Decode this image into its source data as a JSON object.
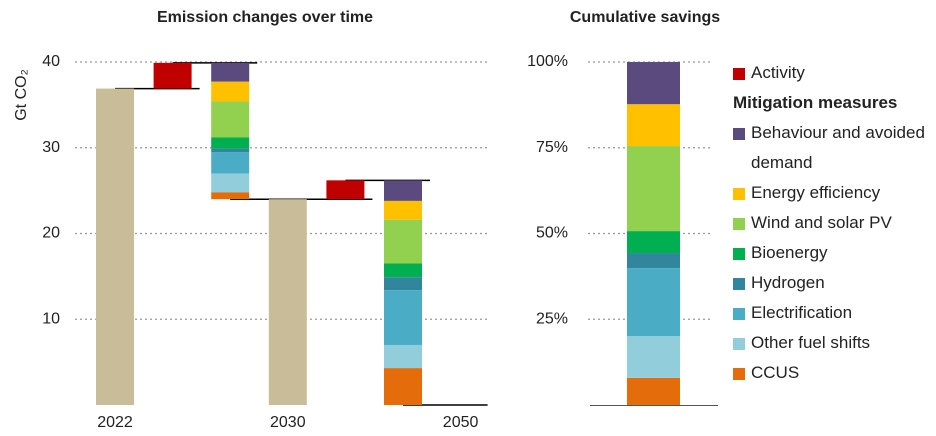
{
  "chart_data": [
    {
      "type": "waterfall",
      "title": "Emission changes over time",
      "y_label": "Gt CO₂",
      "categories": [
        "2022",
        null,
        null,
        "2030",
        null,
        null,
        "2050"
      ],
      "totals": {
        "color": "#c8bd98",
        "values": [
          36.9,
          null,
          null,
          24.0,
          null,
          null,
          0
        ]
      },
      "legend_group_title": "Mitigation measures",
      "series": [
        {
          "name": "Activity",
          "color": "#c00000",
          "values": [
            null,
            3.0,
            null,
            null,
            2.2,
            null,
            null
          ]
        },
        {
          "name": "Behaviour and avoided demand",
          "color": "#5b4a7e",
          "values": [
            null,
            null,
            -2.2,
            null,
            null,
            -2.4,
            null
          ]
        },
        {
          "name": "Energy efficiency",
          "color": "#ffc000",
          "values": [
            null,
            null,
            -2.3,
            null,
            null,
            -2.2,
            null
          ]
        },
        {
          "name": "Wind and solar PV",
          "color": "#92d050",
          "values": [
            null,
            null,
            -4.2,
            null,
            null,
            -5.1,
            null
          ]
        },
        {
          "name": "Bioenergy",
          "color": "#00b050",
          "values": [
            null,
            null,
            -1.3,
            null,
            null,
            -1.6,
            null
          ]
        },
        {
          "name": "Hydrogen",
          "color": "#31859c",
          "values": [
            null,
            null,
            -0.4,
            null,
            null,
            -1.5,
            null
          ]
        },
        {
          "name": "Electrification",
          "color": "#4bacc6",
          "values": [
            null,
            null,
            -2.5,
            null,
            null,
            -6.4,
            null
          ]
        },
        {
          "name": "Other fuel shifts",
          "color": "#92cddc",
          "values": [
            null,
            null,
            -2.2,
            null,
            null,
            -2.7,
            null
          ]
        },
        {
          "name": "CCUS",
          "color": "#e46c0a",
          "values": [
            null,
            null,
            -0.8,
            null,
            null,
            -4.3,
            null
          ]
        }
      ],
      "ylim": [
        0,
        40
      ],
      "yticks": [
        10,
        20,
        30,
        40
      ],
      "grid": true
    },
    {
      "type": "stacked_percent",
      "title": "Cumulative savings",
      "values": [
        12.3,
        12.2,
        24.8,
        6.4,
        4.4,
        19.8,
        12.2,
        7.9
      ],
      "colors": [
        "#5b4a7e",
        "#ffc000",
        "#92d050",
        "#00b050",
        "#31859c",
        "#4bacc6",
        "#92cddc",
        "#e46c0a"
      ],
      "ylim": [
        0,
        100
      ],
      "yticks": [
        {
          "value": 25,
          "label": "25%"
        },
        {
          "value": 50,
          "label": "50%"
        },
        {
          "value": 75,
          "label": "75%"
        },
        {
          "value": 100,
          "label": "100%"
        }
      ],
      "grid": true
    }
  ]
}
